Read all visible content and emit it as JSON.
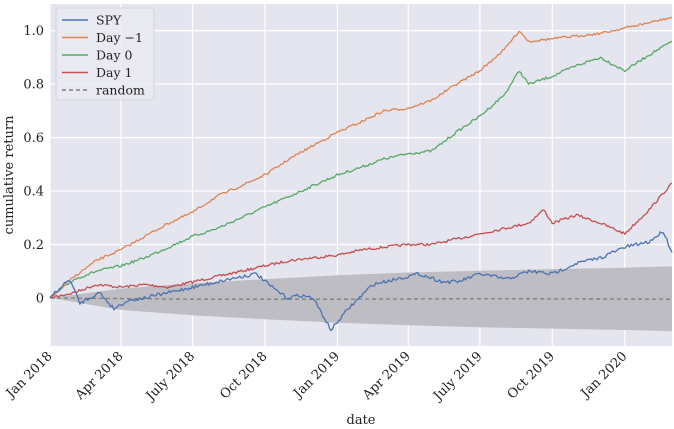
{
  "chart_data": {
    "type": "line",
    "xlabel": "date",
    "ylabel": "cumulative return",
    "x_ticks": [
      {
        "date": "2018-01-01",
        "label": "Jan 2018"
      },
      {
        "date": "2018-04-01",
        "label": "Apr 2018"
      },
      {
        "date": "2018-07-01",
        "label": "July 2018"
      },
      {
        "date": "2018-10-01",
        "label": "Oct 2018"
      },
      {
        "date": "2019-01-01",
        "label": "Jan 2019"
      },
      {
        "date": "2019-04-01",
        "label": "Apr 2019"
      },
      {
        "date": "2019-07-01",
        "label": "July 2019"
      },
      {
        "date": "2019-10-01",
        "label": "Oct 2019"
      },
      {
        "date": "2020-01-01",
        "label": "Jan 2020"
      }
    ],
    "xlim": [
      "2018-01-01",
      "2020-03-01"
    ],
    "y_ticks": [
      0,
      0.2,
      0.4,
      0.6,
      0.8,
      1.0
    ],
    "y_tick_labels": [
      "0",
      "0.2",
      "0.4",
      "0.6",
      "0.8",
      "1.0"
    ],
    "ylim": [
      -0.18,
      1.1
    ],
    "grid": true,
    "legend_position": "top-left",
    "background": "#e5e5ef",
    "series": [
      {
        "name": "SPY",
        "color": "#4c72b0",
        "style": "solid",
        "x": [
          "2018-01-01",
          "2018-01-15",
          "2018-01-26",
          "2018-02-08",
          "2018-02-20",
          "2018-03-05",
          "2018-03-23",
          "2018-04-10",
          "2018-05-01",
          "2018-06-01",
          "2018-07-01",
          "2018-08-01",
          "2018-09-01",
          "2018-09-20",
          "2018-10-10",
          "2018-10-29",
          "2018-11-15",
          "2018-12-01",
          "2018-12-24",
          "2019-01-15",
          "2019-02-15",
          "2019-03-15",
          "2019-04-15",
          "2019-05-15",
          "2019-06-03",
          "2019-07-01",
          "2019-08-05",
          "2019-09-01",
          "2019-10-01",
          "2019-11-01",
          "2019-12-01",
          "2020-01-01",
          "2020-02-01",
          "2020-02-19",
          "2020-03-01"
        ],
        "y": [
          0.0,
          0.04,
          0.07,
          -0.02,
          0.0,
          0.02,
          -0.04,
          -0.01,
          0.0,
          0.02,
          0.04,
          0.06,
          0.08,
          0.09,
          0.04,
          0.0,
          0.01,
          0.0,
          -0.12,
          -0.04,
          0.05,
          0.07,
          0.09,
          0.06,
          0.06,
          0.09,
          0.07,
          0.1,
          0.09,
          0.13,
          0.15,
          0.19,
          0.21,
          0.25,
          0.17
        ]
      },
      {
        "name": "Day −1",
        "color": "#dd8452",
        "style": "solid",
        "x": [
          "2018-01-01",
          "2018-02-01",
          "2018-03-01",
          "2018-04-01",
          "2018-05-01",
          "2018-06-01",
          "2018-07-01",
          "2018-08-01",
          "2018-09-01",
          "2018-10-01",
          "2018-11-01",
          "2018-12-01",
          "2019-01-01",
          "2019-02-01",
          "2019-03-01",
          "2019-04-01",
          "2019-05-01",
          "2019-06-01",
          "2019-07-01",
          "2019-08-01",
          "2019-08-20",
          "2019-09-01",
          "2019-10-01",
          "2019-11-01",
          "2019-12-01",
          "2020-01-01",
          "2020-02-01",
          "2020-03-01"
        ],
        "y": [
          0.0,
          0.08,
          0.14,
          0.18,
          0.23,
          0.28,
          0.32,
          0.38,
          0.42,
          0.46,
          0.52,
          0.57,
          0.62,
          0.66,
          0.7,
          0.71,
          0.74,
          0.8,
          0.85,
          0.93,
          1.0,
          0.96,
          0.97,
          0.98,
          0.99,
          1.01,
          1.03,
          1.05
        ]
      },
      {
        "name": "Day 0",
        "color": "#55a868",
        "style": "solid",
        "x": [
          "2018-01-01",
          "2018-02-01",
          "2018-03-01",
          "2018-04-01",
          "2018-05-01",
          "2018-06-01",
          "2018-07-01",
          "2018-08-01",
          "2018-09-01",
          "2018-10-01",
          "2018-11-01",
          "2018-12-01",
          "2019-01-01",
          "2019-02-01",
          "2019-03-01",
          "2019-04-01",
          "2019-05-01",
          "2019-06-01",
          "2019-07-01",
          "2019-08-01",
          "2019-08-20",
          "2019-09-01",
          "2019-10-01",
          "2019-11-01",
          "2019-12-01",
          "2020-01-01",
          "2020-02-01",
          "2020-03-01"
        ],
        "y": [
          0.0,
          0.07,
          0.1,
          0.12,
          0.15,
          0.19,
          0.23,
          0.26,
          0.3,
          0.34,
          0.38,
          0.42,
          0.46,
          0.49,
          0.52,
          0.54,
          0.55,
          0.62,
          0.68,
          0.76,
          0.85,
          0.8,
          0.83,
          0.87,
          0.9,
          0.85,
          0.91,
          0.96
        ]
      },
      {
        "name": "Day 1",
        "color": "#c44e52",
        "style": "solid",
        "x": [
          "2018-01-01",
          "2018-02-01",
          "2018-03-01",
          "2018-04-01",
          "2018-05-01",
          "2018-06-01",
          "2018-07-01",
          "2018-08-01",
          "2018-09-01",
          "2018-10-01",
          "2018-11-01",
          "2018-12-01",
          "2019-01-01",
          "2019-02-01",
          "2019-03-01",
          "2019-04-01",
          "2019-05-01",
          "2019-06-01",
          "2019-07-01",
          "2019-08-01",
          "2019-09-01",
          "2019-09-20",
          "2019-10-01",
          "2019-11-01",
          "2019-12-01",
          "2020-01-01",
          "2020-02-01",
          "2020-03-01"
        ],
        "y": [
          0.0,
          0.02,
          0.05,
          0.04,
          0.05,
          0.04,
          0.06,
          0.08,
          0.1,
          0.12,
          0.14,
          0.15,
          0.16,
          0.18,
          0.19,
          0.2,
          0.2,
          0.22,
          0.24,
          0.26,
          0.28,
          0.33,
          0.28,
          0.31,
          0.28,
          0.24,
          0.33,
          0.43
        ]
      },
      {
        "name": "random",
        "color": "#7f7f7f",
        "style": "dashed",
        "x": [
          "2018-01-01",
          "2018-07-01",
          "2019-01-01",
          "2019-07-01",
          "2020-01-01",
          "2020-03-01"
        ],
        "y": [
          0.0,
          -0.005,
          -0.005,
          -0.003,
          -0.004,
          -0.005
        ]
      }
    ],
    "band": {
      "color": "#bdbdc3",
      "x": [
        "2018-01-01",
        "2018-04-01",
        "2018-07-01",
        "2018-10-01",
        "2019-01-01",
        "2019-04-01",
        "2019-07-01",
        "2019-10-01",
        "2020-01-01",
        "2020-03-01"
      ],
      "upper": [
        0.0,
        0.035,
        0.055,
        0.07,
        0.085,
        0.095,
        0.102,
        0.108,
        0.113,
        0.118
      ],
      "lower": [
        0.0,
        -0.045,
        -0.065,
        -0.08,
        -0.093,
        -0.102,
        -0.11,
        -0.115,
        -0.12,
        -0.125
      ]
    }
  }
}
